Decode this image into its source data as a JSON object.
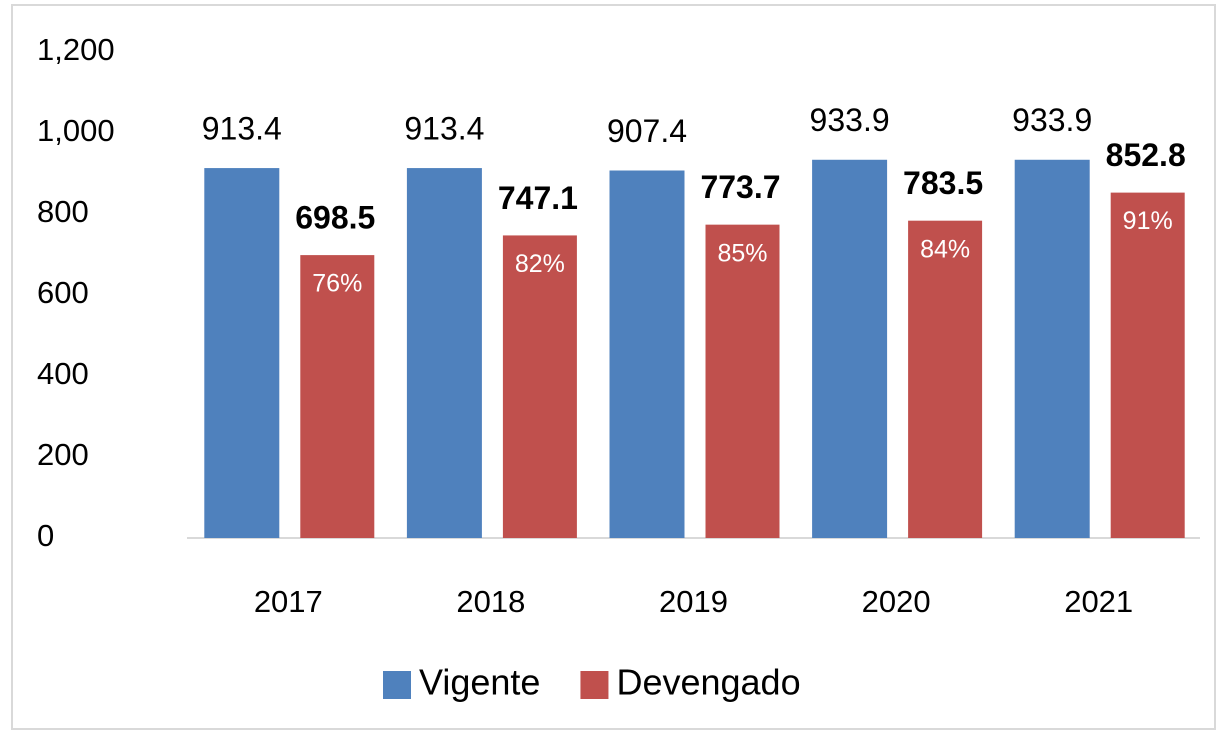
{
  "chart_data": {
    "type": "bar",
    "categories": [
      "2017",
      "2018",
      "2019",
      "2020",
      "2021"
    ],
    "series": [
      {
        "name": "Vigente",
        "color": "#4f81bd",
        "values": [
          913.4,
          913.4,
          907.4,
          933.9,
          933.9
        ]
      },
      {
        "name": "Devengado",
        "color": "#c0504d",
        "values": [
          698.5,
          747.1,
          773.7,
          783.5,
          852.8
        ],
        "inner_labels": [
          "76%",
          "82%",
          "85%",
          "84%",
          "91%"
        ]
      }
    ],
    "ylim": [
      0,
      1200
    ],
    "yticks": [
      0,
      200,
      400,
      600,
      800,
      {
        "value": 1000,
        "label": "1,000"
      },
      {
        "value": 1200,
        "label": "1,200"
      }
    ],
    "grid": false,
    "legend": "bottom"
  }
}
